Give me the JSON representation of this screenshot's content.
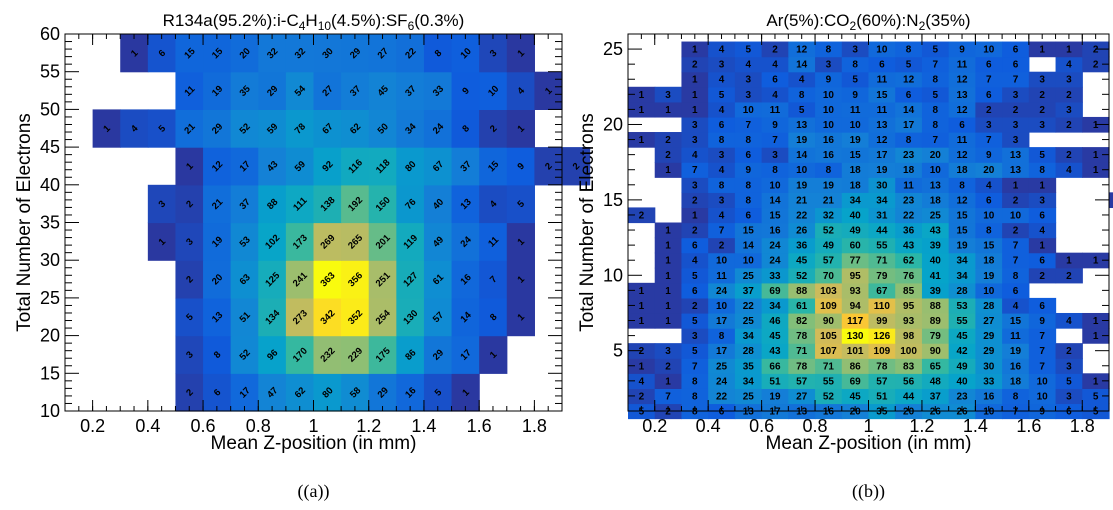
{
  "chart_data": [
    {
      "type": "heatmap",
      "id": "a",
      "title": "R134a(95.2%):i-C4H10(4.5%):SF6(0.3%)",
      "title_parts": [
        "R134a(95.2%):i-C",
        "4",
        "H",
        "10",
        "(4.5%):SF",
        "6",
        "(0.3%)"
      ],
      "xlabel": "Mean Z-position (in mm)",
      "ylabel": "Total Number of Electrons",
      "caption": "((a))",
      "xlim": [
        0.1,
        1.9
      ],
      "ylim": [
        10,
        60
      ],
      "x_ticks": [
        "0.2",
        "0.4",
        "0.6",
        "0.8",
        "1",
        "1.2",
        "1.4",
        "1.6",
        "1.8"
      ],
      "y_ticks": [
        "10",
        "15",
        "20",
        "25",
        "30",
        "35",
        "40",
        "45",
        "50",
        "55",
        "60"
      ],
      "x_bins": [
        0.1,
        0.2,
        0.3,
        0.4,
        0.5,
        0.6,
        0.7,
        0.8,
        0.9,
        1.0,
        1.1,
        1.2,
        1.3,
        1.4,
        1.5,
        1.6,
        1.7,
        1.8,
        1.9
      ],
      "y_bins": [
        10,
        15,
        20,
        25,
        30,
        35,
        40,
        45,
        50,
        55,
        60
      ],
      "cells": [
        {
          "x0": 0.5,
          "y0": 10,
          "values": [
            2,
            6,
            17,
            47,
            62,
            80,
            58,
            29,
            16,
            5,
            1
          ]
        },
        {
          "x0": 0.5,
          "y0": 15,
          "values": [
            3,
            8,
            52,
            96,
            170,
            232,
            229,
            175,
            86,
            29,
            17,
            1
          ]
        },
        {
          "x0": 0.5,
          "y0": 20,
          "values": [
            5,
            13,
            51,
            134,
            273,
            342,
            352,
            254,
            130,
            57,
            14,
            8,
            1
          ]
        },
        {
          "x0": 0.5,
          "y0": 25,
          "values": [
            2,
            20,
            63,
            125,
            241,
            363,
            356,
            251,
            127,
            61,
            16,
            7,
            1
          ]
        },
        {
          "x0": 0.4,
          "y0": 30,
          "values": [
            1,
            3,
            19,
            53,
            102,
            173,
            269,
            265,
            201,
            119,
            49,
            24,
            11,
            1
          ]
        },
        {
          "x0": 0.4,
          "y0": 35,
          "values": [
            3,
            2,
            21,
            37,
            88,
            111,
            138,
            192,
            150,
            76,
            40,
            13,
            4,
            5
          ]
        },
        {
          "x0": 0.5,
          "y0": 40,
          "values": [
            1,
            12,
            17,
            43,
            59,
            92,
            116,
            118,
            80,
            67,
            37,
            15,
            9,
            2,
            2
          ]
        },
        {
          "x0": 0.2,
          "y0": 45,
          "values": [
            1,
            4,
            5,
            21,
            29,
            52,
            59,
            78,
            67,
            62,
            50,
            34,
            24,
            8,
            2,
            1
          ]
        },
        {
          "x0": 0.5,
          "y0": 50,
          "values": [
            11,
            19,
            35,
            29,
            54,
            27,
            37,
            45,
            37,
            33,
            9,
            10,
            4,
            1
          ]
        },
        {
          "x0": 0.3,
          "y0": 55,
          "values": [
            1,
            6,
            15,
            15,
            20,
            32,
            32,
            30,
            29,
            27,
            22,
            8,
            10,
            3,
            1
          ]
        }
      ]
    },
    {
      "type": "heatmap",
      "id": "b",
      "title": "Ar(5%):CO2(60%):N2(35%)",
      "title_parts": [
        "Ar(5%):CO",
        "2",
        "(60%):N",
        "2",
        "(35%)"
      ],
      "xlabel": "Mean Z-position (in mm)",
      "ylabel": "Total Number of Electrons",
      "caption": "((b))",
      "xlim": [
        0.1,
        1.9
      ],
      "ylim": [
        1,
        26
      ],
      "x_ticks": [
        "0.2",
        "0.4",
        "0.6",
        "0.8",
        "1",
        "1.2",
        "1.4",
        "1.6",
        "1.8"
      ],
      "y_ticks": [
        "5",
        "10",
        "15",
        "20",
        "25"
      ],
      "cells": [
        {
          "y": 1,
          "x0": 0.1,
          "values": [
            5,
            2,
            8,
            6,
            13,
            17,
            13,
            16,
            20,
            35,
            20,
            26,
            26,
            10,
            7,
            9,
            6,
            5
          ]
        },
        {
          "y": 2,
          "x0": 0.1,
          "values": [
            2,
            7,
            8,
            22,
            25,
            19,
            27,
            52,
            45,
            51,
            44,
            37,
            23,
            16,
            8,
            10,
            3,
            5
          ]
        },
        {
          "y": 3,
          "x0": 0.1,
          "values": [
            4,
            1,
            8,
            24,
            34,
            51,
            57,
            55,
            69,
            57,
            56,
            48,
            40,
            33,
            18,
            10,
            5,
            1
          ]
        },
        {
          "y": 4,
          "x0": 0.1,
          "values": [
            1,
            2,
            7,
            25,
            35,
            66,
            78,
            71,
            86,
            78,
            83,
            65,
            49,
            30,
            16,
            7,
            3,
            null
          ]
        },
        {
          "y": 5,
          "x0": 0.1,
          "values": [
            2,
            3,
            5,
            17,
            28,
            43,
            71,
            107,
            101,
            109,
            100,
            90,
            42,
            29,
            19,
            7,
            2,
            null
          ]
        },
        {
          "y": 6,
          "x0": 0.3,
          "values": [
            3,
            8,
            34,
            45,
            78,
            105,
            130,
            126,
            98,
            79,
            45,
            29,
            11,
            7,
            null,
            1
          ]
        },
        {
          "y": 7,
          "x0": 0.1,
          "values": [
            1,
            1,
            5,
            17,
            25,
            46,
            82,
            90,
            117,
            99,
            93,
            89,
            55,
            27,
            15,
            9,
            4,
            1
          ]
        },
        {
          "y": 8,
          "x0": 0.1,
          "values": [
            1,
            1,
            2,
            10,
            22,
            34,
            61,
            109,
            94,
            110,
            95,
            88,
            53,
            28,
            4,
            6,
            null,
            null
          ]
        },
        {
          "y": 9,
          "x0": 0.1,
          "values": [
            1,
            1,
            6,
            24,
            37,
            69,
            88,
            103,
            93,
            67,
            85,
            39,
            28,
            10,
            6,
            null,
            null,
            null
          ]
        },
        {
          "y": 10,
          "x0": 0.2,
          "values": [
            1,
            5,
            11,
            25,
            33,
            52,
            70,
            95,
            79,
            76,
            41,
            34,
            19,
            8,
            2,
            2,
            null
          ]
        },
        {
          "y": 11,
          "x0": 0.2,
          "values": [
            1,
            4,
            10,
            10,
            24,
            45,
            57,
            77,
            71,
            62,
            40,
            34,
            18,
            7,
            6,
            1,
            1
          ]
        },
        {
          "y": 12,
          "x0": 0.2,
          "values": [
            1,
            6,
            2,
            14,
            24,
            36,
            49,
            60,
            55,
            43,
            39,
            19,
            15,
            7,
            1,
            null
          ]
        },
        {
          "y": 13,
          "x0": 0.2,
          "values": [
            1,
            2,
            7,
            15,
            16,
            26,
            52,
            49,
            44,
            36,
            43,
            15,
            8,
            2,
            4,
            null
          ]
        },
        {
          "y": 14,
          "x0": 0.1,
          "values": [
            2,
            null,
            1,
            4,
            6,
            15,
            22,
            32,
            40,
            31,
            22,
            25,
            15,
            10,
            10,
            6
          ]
        },
        {
          "y": 15,
          "x0": 0.3,
          "values": [
            2,
            3,
            8,
            14,
            21,
            21,
            34,
            34,
            23,
            18,
            12,
            6,
            2,
            3,
            null,
            null,
            1
          ]
        },
        {
          "y": 16,
          "x0": 0.3,
          "values": [
            3,
            8,
            8,
            10,
            19,
            19,
            18,
            30,
            11,
            13,
            8,
            4,
            1,
            1
          ]
        },
        {
          "y": 17,
          "x0": 0.2,
          "values": [
            1,
            7,
            4,
            9,
            8,
            10,
            8,
            18,
            19,
            18,
            10,
            18,
            20,
            13,
            8,
            4,
            1,
            null
          ]
        },
        {
          "y": 18,
          "x0": 0.2,
          "values": [
            2,
            4,
            3,
            6,
            3,
            14,
            16,
            15,
            17,
            23,
            20,
            12,
            9,
            13,
            5,
            2,
            1
          ]
        },
        {
          "y": 19,
          "x0": 0.1,
          "values": [
            1,
            2,
            3,
            8,
            8,
            7,
            19,
            16,
            19,
            12,
            8,
            7,
            11,
            7,
            3
          ]
        },
        {
          "y": 20,
          "x0": 0.3,
          "values": [
            3,
            6,
            7,
            9,
            13,
            10,
            10,
            13,
            17,
            8,
            6,
            3,
            3,
            3,
            2,
            1
          ]
        },
        {
          "y": 21,
          "x0": 0.1,
          "values": [
            1,
            1,
            1,
            4,
            10,
            11,
            5,
            10,
            11,
            11,
            14,
            8,
            12,
            2,
            2,
            2,
            3
          ]
        },
        {
          "y": 22,
          "x0": 0.1,
          "values": [
            1,
            3,
            1,
            5,
            3,
            4,
            8,
            10,
            9,
            15,
            6,
            5,
            13,
            6,
            3,
            2,
            2
          ]
        },
        {
          "y": 23,
          "x0": 0.3,
          "values": [
            1,
            4,
            3,
            6,
            4,
            9,
            5,
            11,
            12,
            8,
            12,
            7,
            7,
            3,
            3
          ]
        },
        {
          "y": 24,
          "x0": 0.3,
          "values": [
            2,
            3,
            4,
            4,
            14,
            3,
            8,
            6,
            5,
            7,
            11,
            6,
            6,
            null,
            4,
            2
          ]
        },
        {
          "y": 25,
          "x0": 0.3,
          "values": [
            1,
            4,
            5,
            2,
            12,
            8,
            3,
            10,
            8,
            5,
            9,
            10,
            6,
            1,
            1,
            2
          ]
        }
      ]
    }
  ]
}
